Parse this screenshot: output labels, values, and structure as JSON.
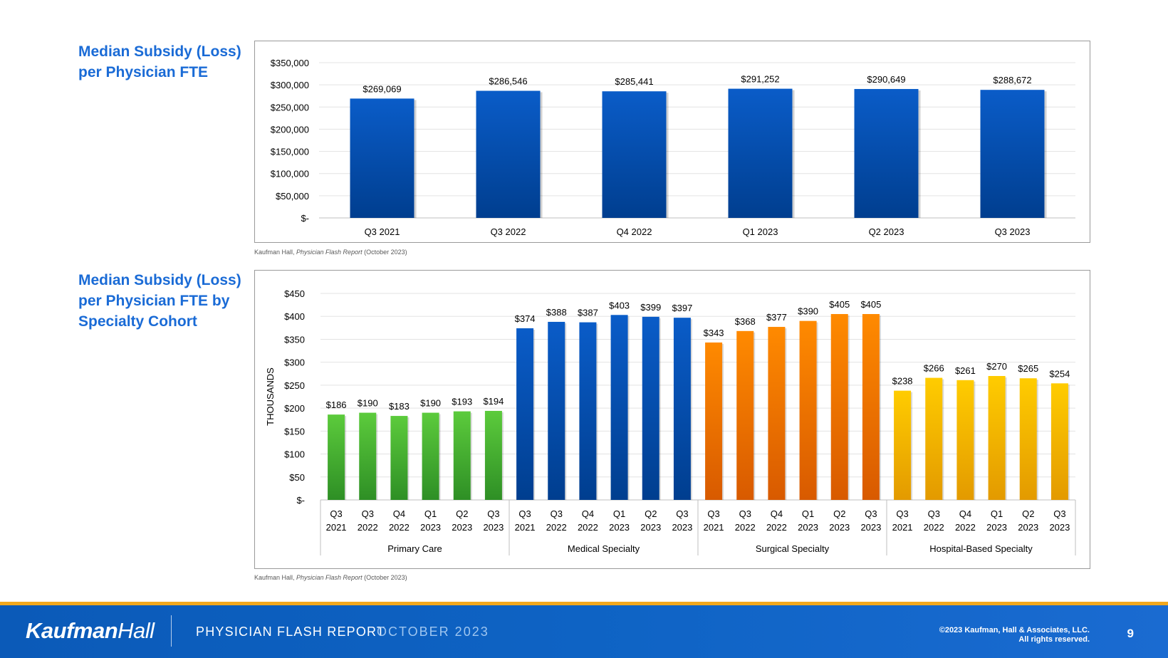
{
  "titles": {
    "chart1": "Median Subsidy (Loss) per Physician FTE",
    "chart2": "Median Subsidy (Loss) per Physician FTE by Specialty Cohort"
  },
  "source": {
    "prefix": "Kaufman Hall, ",
    "italic": "Physician Flash Report",
    "suffix": " (October 2023)"
  },
  "footer": {
    "logo_bold": "Kaufman",
    "logo_light": "Hall",
    "report_name": "PHYSICIAN FLASH REPORT",
    "report_date": "OCTOBER 2023",
    "copyright_line1": "©2023 Kaufman, Hall & Associates, LLC.",
    "copyright_line2": "All rights reserved.",
    "page_number": "9"
  },
  "colors": {
    "blue_top": "#0a5cc8",
    "blue_bottom": "#003e8f",
    "green_top": "#5ccb3c",
    "green_bottom": "#2e8f25",
    "orange_top": "#ff8a00",
    "orange_bottom": "#d85a00",
    "gold_top": "#ffcc00",
    "gold_bottom": "#e39a00",
    "title": "#1a6bd6",
    "footer": "#0e63c4",
    "footer_accent": "#f2a81d"
  },
  "chart_data": [
    {
      "type": "bar",
      "title": "",
      "categories": [
        "Q3 2021",
        "Q3 2022",
        "Q4 2022",
        "Q1 2023",
        "Q2 2023",
        "Q3 2023"
      ],
      "values": [
        269069,
        286546,
        285441,
        291252,
        290649,
        288672
      ],
      "value_labels": [
        "$269,069",
        "$286,546",
        "$285,441",
        "$291,252",
        "$290,649",
        "$288,672"
      ],
      "yticks": [
        0,
        50000,
        100000,
        150000,
        200000,
        250000,
        300000,
        350000
      ],
      "ytick_labels": [
        "$-",
        "$50,000",
        "$100,000",
        "$150,000",
        "$200,000",
        "$250,000",
        "$300,000",
        "$350,000"
      ],
      "ylim": [
        0,
        350000
      ],
      "xlabel": "",
      "ylabel": "",
      "grid": true,
      "legend": "none"
    },
    {
      "type": "bar",
      "title": "",
      "ylabel": "THOUSANDS",
      "xlabel": "",
      "ylim": [
        0,
        450
      ],
      "yticks": [
        0,
        50,
        100,
        150,
        200,
        250,
        300,
        350,
        400,
        450
      ],
      "ytick_labels": [
        "$-",
        "$50",
        "$100",
        "$150",
        "$200",
        "$250",
        "$300",
        "$350",
        "$400",
        "$450"
      ],
      "grid": true,
      "legend": "none",
      "periods": [
        [
          "Q3",
          "2021"
        ],
        [
          "Q3",
          "2022"
        ],
        [
          "Q4",
          "2022"
        ],
        [
          "Q1",
          "2023"
        ],
        [
          "Q2",
          "2023"
        ],
        [
          "Q3",
          "2023"
        ]
      ],
      "groups": [
        {
          "name": "Primary Care",
          "color": "green",
          "values": [
            186,
            190,
            183,
            190,
            193,
            194
          ],
          "value_labels": [
            "$186",
            "$190",
            "$183",
            "$190",
            "$193",
            "$194"
          ]
        },
        {
          "name": "Medical Specialty",
          "color": "blue",
          "values": [
            374,
            388,
            387,
            403,
            399,
            397
          ],
          "value_labels": [
            "$374",
            "$388",
            "$387",
            "$403",
            "$399",
            "$397"
          ]
        },
        {
          "name": "Surgical Specialty",
          "color": "orange",
          "values": [
            343,
            368,
            377,
            390,
            405,
            405
          ],
          "value_labels": [
            "$343",
            "$368",
            "$377",
            "$390",
            "$405",
            "$405"
          ]
        },
        {
          "name": "Hospital-Based Specialty",
          "color": "gold",
          "values": [
            238,
            266,
            261,
            270,
            265,
            254
          ],
          "value_labels": [
            "$238",
            "$266",
            "$261",
            "$270",
            "$265",
            "$254"
          ]
        }
      ]
    }
  ]
}
